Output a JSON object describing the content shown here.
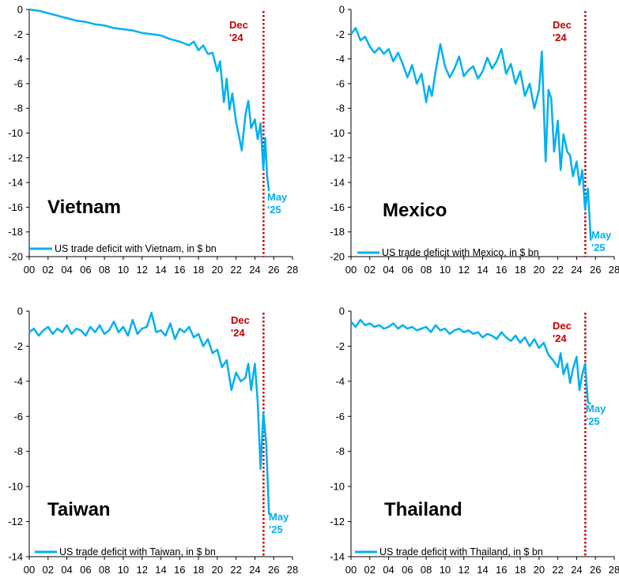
{
  "colors": {
    "series": "#00b0f0",
    "marker_line": "#c00000",
    "axis": "#000000"
  },
  "chart_data": [
    {
      "type": "line",
      "country": "Vietnam",
      "legend": "US trade deficit with Vietnam, in $ bn",
      "marker_label": [
        "Dec",
        "'24"
      ],
      "end_label": [
        "May",
        "'25"
      ],
      "marker_x": 24.92,
      "xlim": [
        0,
        28
      ],
      "ylim": [
        -20,
        0
      ],
      "xticks": [
        "00",
        "02",
        "04",
        "06",
        "08",
        "10",
        "12",
        "14",
        "16",
        "18",
        "20",
        "22",
        "24",
        "26",
        "28"
      ],
      "yticks": [
        0,
        -2,
        -4,
        -6,
        -8,
        -10,
        -12,
        -14,
        -16,
        -18,
        -20
      ],
      "series": [
        {
          "x": [
            0,
            1,
            2,
            3,
            4,
            5,
            6,
            7,
            8,
            9,
            10,
            11,
            12,
            13,
            14,
            15,
            16,
            17,
            17.5,
            18,
            18.5,
            19,
            19.5,
            20,
            20.3,
            20.7,
            21,
            21.3,
            21.6,
            22,
            22.3,
            22.6,
            23,
            23.3,
            23.6,
            24,
            24.3,
            24.6,
            24.9,
            25.1,
            25.3,
            25.5
          ],
          "y": [
            0,
            -0.1,
            -0.3,
            -0.5,
            -0.7,
            -0.9,
            -1.0,
            -1.2,
            -1.3,
            -1.5,
            -1.6,
            -1.7,
            -1.9,
            -2.0,
            -2.1,
            -2.4,
            -2.6,
            -2.9,
            -2.6,
            -3.3,
            -2.9,
            -3.6,
            -3.5,
            -5.0,
            -4.2,
            -7.5,
            -5.6,
            -8.1,
            -6.8,
            -9.1,
            -10.2,
            -11.4,
            -8.5,
            -7.4,
            -9.6,
            -8.9,
            -10.5,
            -9.2,
            -13.0,
            -10.4,
            -13.5,
            -14.7
          ]
        }
      ]
    },
    {
      "type": "line",
      "country": "Mexico",
      "legend": "US trade deficit with Mexico, in $ bn",
      "marker_label": [
        "Dec",
        "'24"
      ],
      "end_label": [
        "May",
        "'25"
      ],
      "marker_x": 24.92,
      "xlim": [
        0,
        28
      ],
      "ylim": [
        -20,
        0
      ],
      "xticks": [
        "00",
        "02",
        "04",
        "06",
        "08",
        "10",
        "12",
        "14",
        "16",
        "18",
        "20",
        "22",
        "24",
        "26",
        "28"
      ],
      "yticks": [
        0,
        -2,
        -4,
        -6,
        -8,
        -10,
        -12,
        -14,
        -16,
        -18,
        -20
      ],
      "series": [
        {
          "x": [
            0,
            0.5,
            1,
            1.5,
            2,
            2.5,
            3,
            3.5,
            4,
            4.5,
            5,
            5.5,
            6,
            6.5,
            7,
            7.5,
            8,
            8.3,
            8.6,
            9,
            9.5,
            10,
            10.5,
            11,
            11.5,
            12,
            12.5,
            13,
            13.5,
            14,
            14.5,
            15,
            15.5,
            16,
            16.5,
            17,
            17.5,
            18,
            18.5,
            19,
            19.5,
            20,
            20.3,
            20.7,
            21,
            21.3,
            21.6,
            22,
            22.3,
            22.6,
            23,
            23.3,
            23.6,
            24,
            24.3,
            24.6,
            24.9,
            25.2,
            25.5
          ],
          "y": [
            -2.0,
            -1.5,
            -2.5,
            -2.2,
            -3.0,
            -3.5,
            -3.1,
            -3.6,
            -3.2,
            -4.2,
            -3.5,
            -4.4,
            -5.5,
            -4.5,
            -6.0,
            -5.2,
            -7.5,
            -6.2,
            -7.0,
            -5.0,
            -2.8,
            -4.6,
            -5.5,
            -4.8,
            -3.8,
            -5.4,
            -4.9,
            -4.6,
            -5.6,
            -5.0,
            -3.9,
            -4.8,
            -4.2,
            -3.2,
            -5.2,
            -4.4,
            -6.0,
            -5.0,
            -7.0,
            -6.0,
            -8.0,
            -6.5,
            -3.4,
            -12.3,
            -6.5,
            -7.2,
            -11.5,
            -9.0,
            -13.0,
            -10.1,
            -11.5,
            -11.8,
            -13.5,
            -12.3,
            -14.2,
            -13.0,
            -16.2,
            -14.5,
            -18.7
          ]
        }
      ]
    },
    {
      "type": "line",
      "country": "Taiwan",
      "legend": "US trade deficit with Taiwan, in $ bn",
      "marker_label": [
        "Dec",
        "'24"
      ],
      "end_label": [
        "May",
        "'25"
      ],
      "marker_x": 24.92,
      "xlim": [
        0,
        28
      ],
      "ylim": [
        -14,
        0
      ],
      "xticks": [
        "00",
        "02",
        "04",
        "06",
        "08",
        "10",
        "12",
        "14",
        "16",
        "18",
        "20",
        "22",
        "24",
        "26",
        "28"
      ],
      "yticks": [
        0,
        -2,
        -4,
        -6,
        -8,
        -10,
        -12,
        -14
      ],
      "series": [
        {
          "x": [
            0,
            0.5,
            1,
            1.5,
            2,
            2.5,
            3,
            3.5,
            4,
            4.5,
            5,
            5.5,
            6,
            6.5,
            7,
            7.5,
            8,
            8.5,
            9,
            9.5,
            10,
            10.5,
            11,
            11.5,
            12,
            12.5,
            13,
            13.5,
            14,
            14.5,
            15,
            15.5,
            16,
            16.5,
            17,
            17.5,
            18,
            18.5,
            19,
            19.5,
            20,
            20.5,
            21,
            21.5,
            22,
            22.5,
            23,
            23.3,
            23.6,
            24,
            24.3,
            24.6,
            24.9,
            25.2,
            25.5
          ],
          "y": [
            -1.2,
            -1.0,
            -1.4,
            -1.1,
            -0.9,
            -1.3,
            -1.0,
            -1.2,
            -0.8,
            -1.3,
            -1.0,
            -1.1,
            -1.4,
            -0.9,
            -1.2,
            -0.8,
            -1.3,
            -1.1,
            -0.6,
            -1.2,
            -0.9,
            -1.4,
            -0.5,
            -1.3,
            -1.0,
            -0.9,
            -0.1,
            -1.2,
            -1.1,
            -1.4,
            -0.7,
            -1.6,
            -1.0,
            -1.2,
            -0.9,
            -1.5,
            -1.3,
            -2.0,
            -1.6,
            -2.4,
            -2.2,
            -3.2,
            -2.8,
            -4.5,
            -3.5,
            -4.0,
            -3.8,
            -3.0,
            -4.5,
            -3.0,
            -5.2,
            -9.0,
            -5.8,
            -7.5,
            -11.6
          ]
        }
      ]
    },
    {
      "type": "line",
      "country": "Thailand",
      "legend": "US trade deficit with Thailand, in $ bn",
      "marker_label": [
        "Dec",
        "'24"
      ],
      "end_label": [
        "May",
        "'25"
      ],
      "marker_x": 24.92,
      "xlim": [
        0,
        28
      ],
      "ylim": [
        -14,
        0
      ],
      "xticks": [
        "00",
        "02",
        "04",
        "06",
        "08",
        "10",
        "12",
        "14",
        "16",
        "18",
        "20",
        "22",
        "24",
        "26",
        "28"
      ],
      "yticks": [
        0,
        -2,
        -4,
        -6,
        -8,
        -10,
        -12,
        -14
      ],
      "series": [
        {
          "x": [
            0,
            0.5,
            1,
            1.5,
            2,
            2.5,
            3,
            3.5,
            4,
            4.5,
            5,
            5.5,
            6,
            6.5,
            7,
            7.5,
            8,
            8.5,
            9,
            9.5,
            10,
            10.5,
            11,
            11.5,
            12,
            12.5,
            13,
            13.5,
            14,
            14.5,
            15,
            15.5,
            16,
            16.5,
            17,
            17.5,
            18,
            18.5,
            19,
            19.5,
            20,
            20.5,
            21,
            21.5,
            22,
            22.3,
            22.6,
            23,
            23.3,
            23.6,
            24,
            24.3,
            24.6,
            24.9,
            25.2,
            25.5
          ],
          "y": [
            -0.6,
            -0.9,
            -0.5,
            -0.8,
            -0.7,
            -0.9,
            -0.8,
            -1.0,
            -0.9,
            -0.7,
            -1.0,
            -0.8,
            -1.0,
            -0.9,
            -1.1,
            -1.0,
            -0.9,
            -1.2,
            -0.8,
            -1.1,
            -1.0,
            -1.3,
            -1.1,
            -1.0,
            -1.2,
            -1.1,
            -1.3,
            -1.2,
            -1.5,
            -1.3,
            -1.4,
            -1.6,
            -1.2,
            -1.5,
            -1.7,
            -1.4,
            -1.8,
            -1.5,
            -2.0,
            -1.6,
            -2.1,
            -1.8,
            -2.5,
            -2.8,
            -3.2,
            -2.4,
            -3.6,
            -3.0,
            -4.1,
            -3.3,
            -2.6,
            -4.5,
            -3.6,
            -3.0,
            -5.2,
            -5.3
          ]
        }
      ]
    }
  ]
}
